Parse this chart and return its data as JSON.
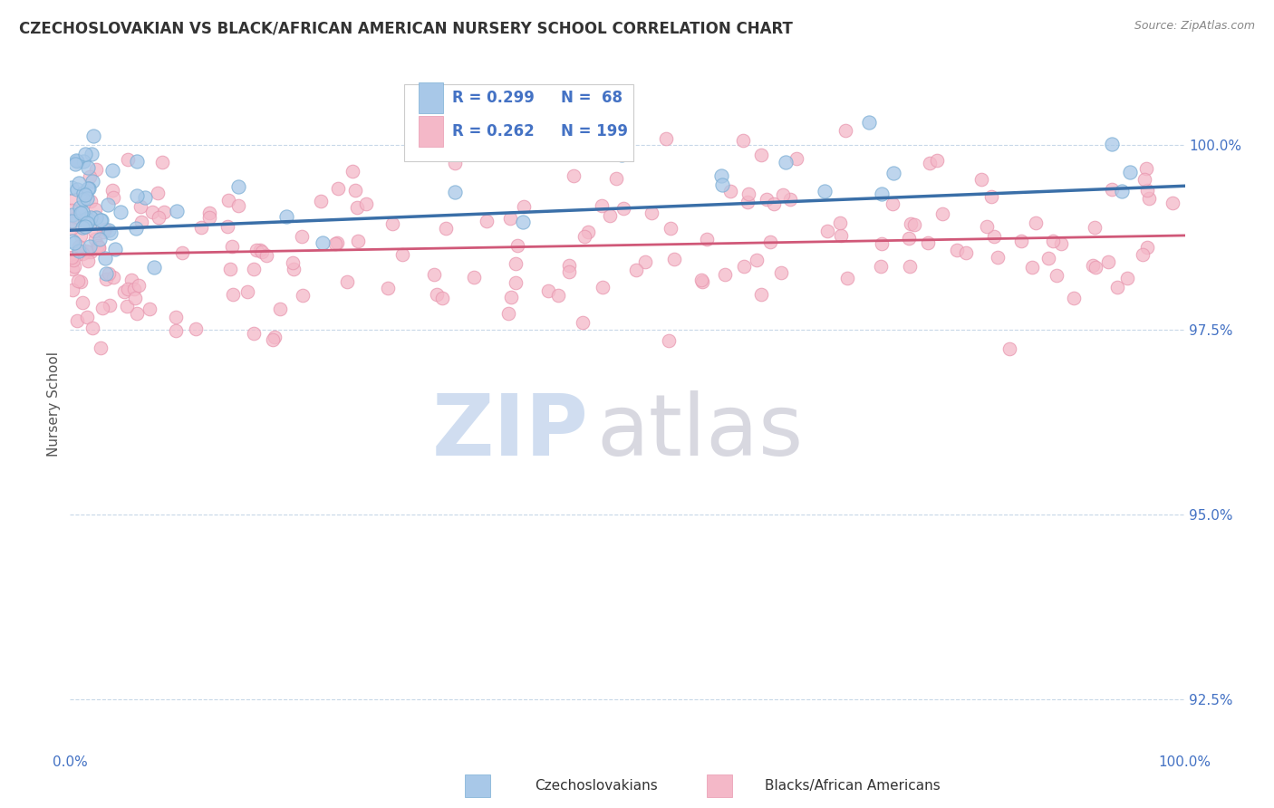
{
  "title": "CZECHOSLOVAKIAN VS BLACK/AFRICAN AMERICAN NURSERY SCHOOL CORRELATION CHART",
  "source": "Source: ZipAtlas.com",
  "ylabel": "Nursery School",
  "blue_R": 0.299,
  "blue_N": 68,
  "pink_R": 0.262,
  "pink_N": 199,
  "blue_color": "#a8c8e8",
  "blue_edge_color": "#7aaed4",
  "blue_line_color": "#3a6fa8",
  "pink_color": "#f4b8c8",
  "pink_edge_color": "#e898b0",
  "pink_line_color": "#d05878",
  "axis_label_color": "#4472C4",
  "legend_text_color": "#333333",
  "legend_val_color": "#4472C4",
  "title_color": "#333333",
  "source_color": "#888888",
  "xlim": [
    0.0,
    100.0
  ],
  "ylim": [
    91.8,
    101.2
  ],
  "yticks": [
    92.5,
    95.0,
    97.5,
    100.0
  ],
  "grid_color": "#c8d8e8",
  "watermark_zip_color": "#c8d8ee",
  "watermark_atlas_color": "#b8b8c8",
  "blue_trend_x0": 0.0,
  "blue_trend_y0": 98.85,
  "blue_trend_x1": 100.0,
  "blue_trend_y1": 99.45,
  "pink_trend_x0": 0.0,
  "pink_trend_y0": 98.52,
  "pink_trend_x1": 100.0,
  "pink_trend_y1": 98.78
}
